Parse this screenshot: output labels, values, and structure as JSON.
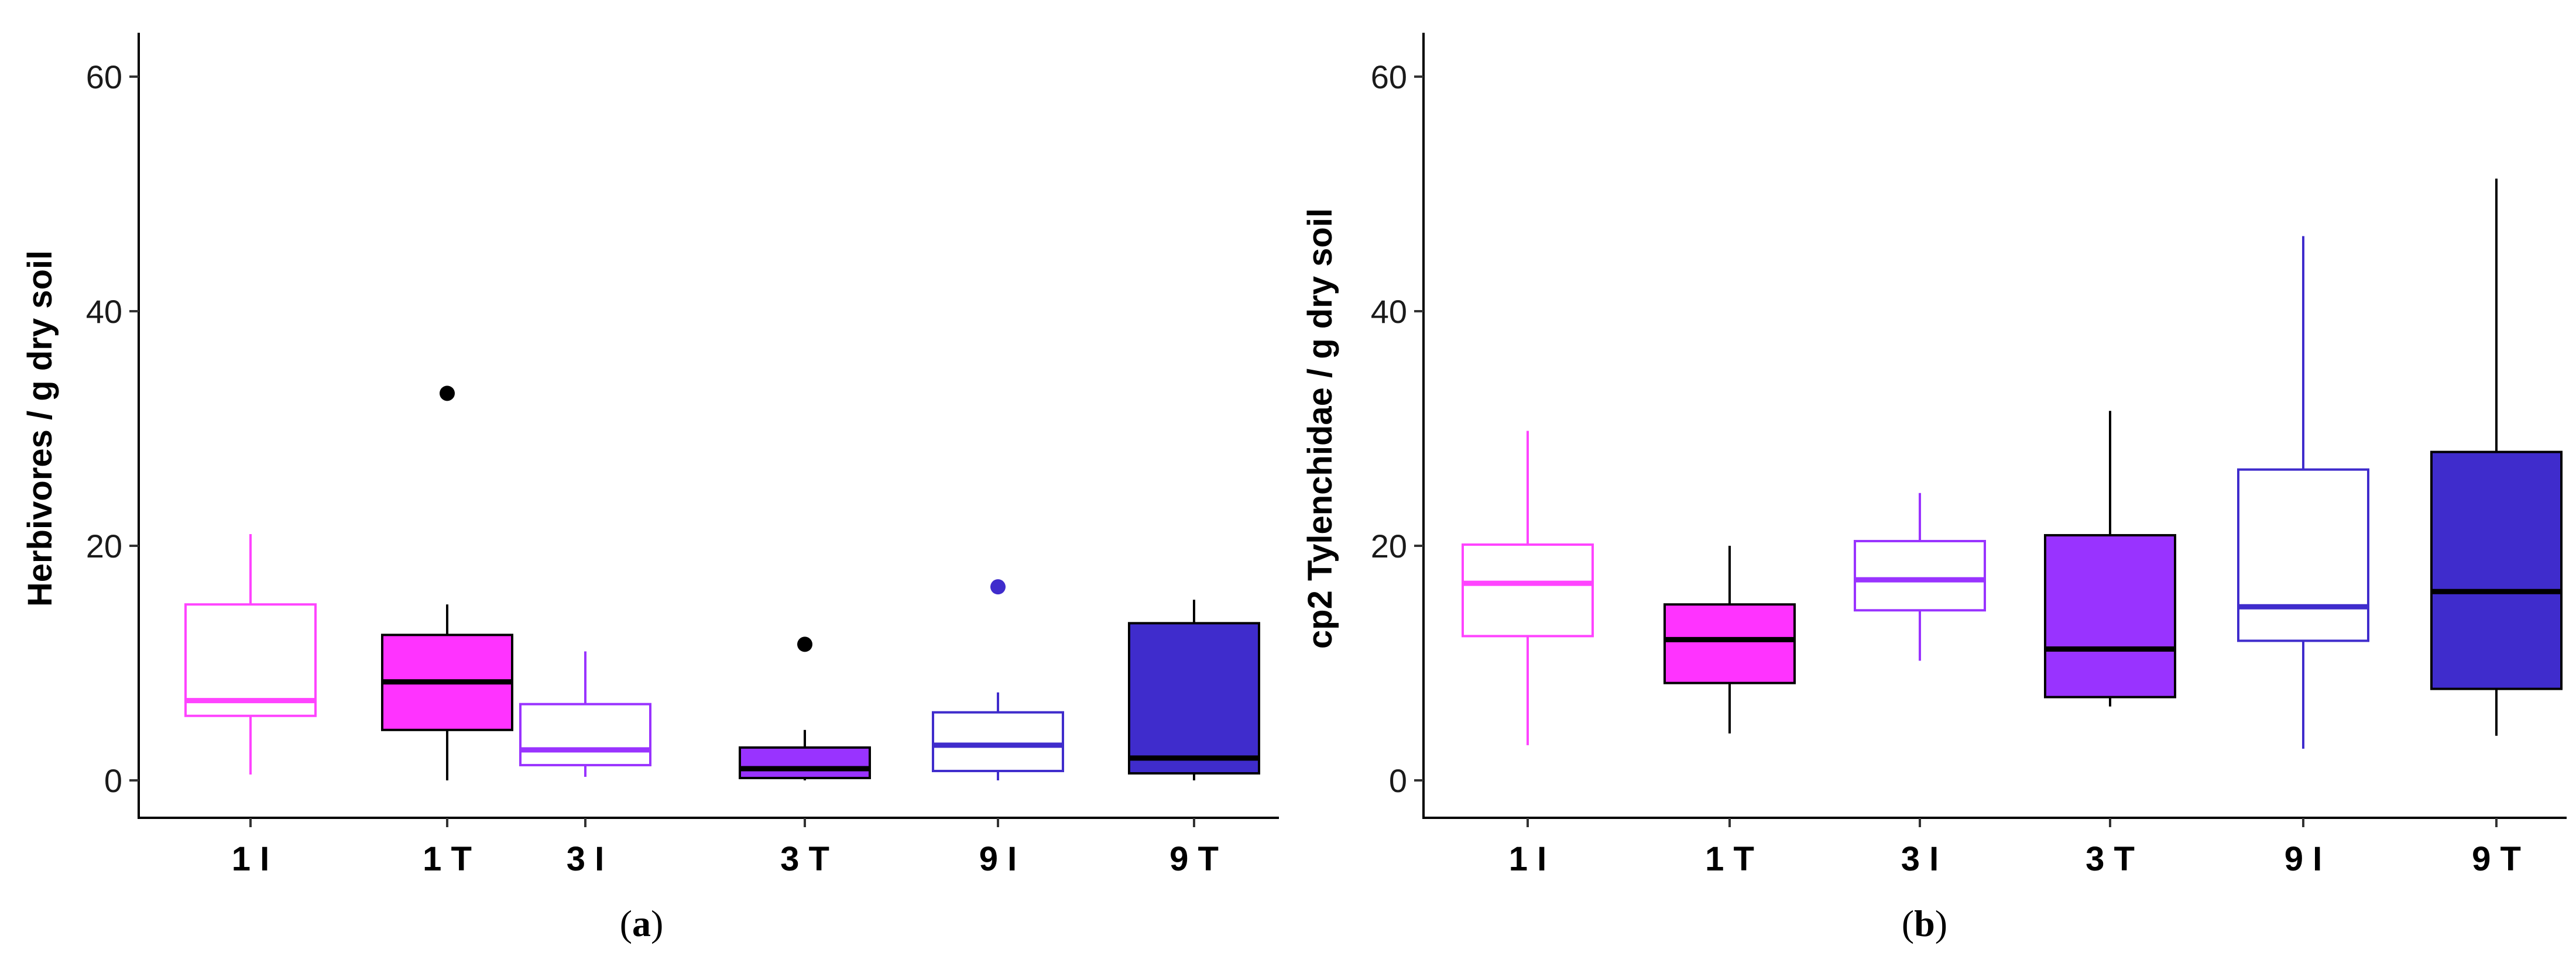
{
  "chart_data": [
    {
      "type": "box",
      "panel_label": "a",
      "ylabel": "Herbivores / g dry soil",
      "xlabel": "",
      "ylim": [
        0,
        60
      ],
      "yticks": [
        0,
        20,
        40,
        60
      ],
      "grid": false,
      "categories": [
        "1 I",
        "1 T",
        "3 I",
        "3 T",
        "9 I",
        "9 T"
      ],
      "boxes": [
        {
          "category": "1 I",
          "min": 0.5,
          "q1": 5.5,
          "median": 6.8,
          "q3": 15.0,
          "max": 21.0,
          "outliers": [],
          "fill": "#ffffff",
          "stroke": "#ff44ff",
          "median_color": "#ff44ff"
        },
        {
          "category": "1 T",
          "min": 0.0,
          "q1": 4.3,
          "median": 8.4,
          "q3": 12.4,
          "max": 15.0,
          "outliers": [
            33.0
          ],
          "fill": "#ff33ff",
          "stroke": "#000000",
          "median_color": "#000000"
        },
        {
          "category": "3 I",
          "min": 0.3,
          "q1": 1.3,
          "median": 2.6,
          "q3": 6.5,
          "max": 11.0,
          "outliers": [],
          "fill": "#ffffff",
          "stroke": "#9933ff",
          "median_color": "#9933ff"
        },
        {
          "category": "3 T",
          "min": 0.0,
          "q1": 0.2,
          "median": 1.0,
          "q3": 2.8,
          "max": 4.3,
          "outliers": [
            11.6
          ],
          "fill": "#9933ff",
          "stroke": "#000000",
          "median_color": "#000000"
        },
        {
          "category": "9 I",
          "min": 0.0,
          "q1": 0.8,
          "median": 3.0,
          "q3": 5.8,
          "max": 7.5,
          "outliers": [
            16.5
          ],
          "fill": "#ffffff",
          "stroke": "#3f2ccc",
          "median_color": "#3f2ccc"
        },
        {
          "category": "9 T",
          "min": 0.0,
          "q1": 0.6,
          "median": 1.9,
          "q3": 13.4,
          "max": 15.4,
          "outliers": [],
          "fill": "#3f2ccc",
          "stroke": "#000000",
          "median_color": "#000000"
        }
      ]
    },
    {
      "type": "box",
      "panel_label": "b",
      "ylabel": "cp2 Tylenchidae / g dry soil",
      "xlabel": "",
      "ylim": [
        0,
        60
      ],
      "yticks": [
        0,
        20,
        40,
        60
      ],
      "grid": false,
      "categories": [
        "1 I",
        "1 T",
        "3 I",
        "3 T",
        "9 I",
        "9 T"
      ],
      "boxes": [
        {
          "category": "1 I",
          "min": 3.0,
          "q1": 12.3,
          "median": 16.8,
          "q3": 20.1,
          "max": 29.8,
          "outliers": [],
          "fill": "#ffffff",
          "stroke": "#ff44ff",
          "median_color": "#ff44ff"
        },
        {
          "category": "1 T",
          "min": 4.0,
          "q1": 8.3,
          "median": 12.0,
          "q3": 15.0,
          "max": 20.0,
          "outliers": [],
          "fill": "#ff33ff",
          "stroke": "#000000",
          "median_color": "#000000"
        },
        {
          "category": "3 I",
          "min": 10.2,
          "q1": 14.5,
          "median": 17.1,
          "q3": 20.4,
          "max": 24.5,
          "outliers": [],
          "fill": "#ffffff",
          "stroke": "#9933ff",
          "median_color": "#9933ff"
        },
        {
          "category": "3 T",
          "min": 6.3,
          "q1": 7.1,
          "median": 11.2,
          "q3": 20.9,
          "max": 31.5,
          "outliers": [],
          "fill": "#9933ff",
          "stroke": "#000000",
          "median_color": "#000000"
        },
        {
          "category": "9 I",
          "min": 2.7,
          "q1": 11.9,
          "median": 14.8,
          "q3": 26.5,
          "max": 46.4,
          "outliers": [],
          "fill": "#ffffff",
          "stroke": "#3f2ccc",
          "median_color": "#3f2ccc"
        },
        {
          "category": "9 T",
          "min": 3.8,
          "q1": 7.8,
          "median": 16.1,
          "q3": 28.0,
          "max": 51.3,
          "outliers": [],
          "fill": "#3f2ccc",
          "stroke": "#000000",
          "median_color": "#000000"
        }
      ]
    }
  ]
}
